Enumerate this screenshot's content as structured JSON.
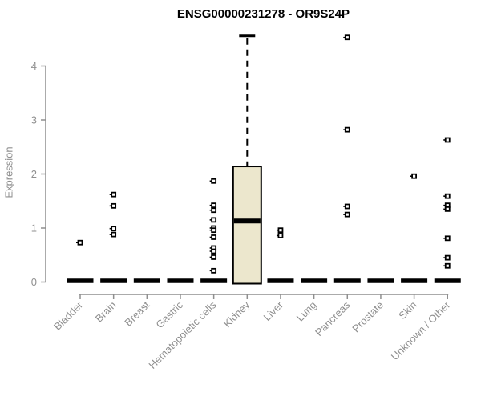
{
  "figure": {
    "title": "ENSG00000231278 - OR9S24P",
    "ylabel": "Expression"
  },
  "chart_data": {
    "type": "boxplot",
    "title": "ENSG00000231278 - OR9S24P",
    "xlabel": "",
    "ylabel": "Expression",
    "ylim": [
      0,
      4.6
    ],
    "yticks": [
      0,
      1,
      2,
      3,
      4
    ],
    "grid": false,
    "legend": null,
    "outlier_marker": "open-square",
    "categories": [
      "Bladder",
      "Brain",
      "Breast",
      "Gastric",
      "Hematopoietic cells",
      "Kidney",
      "Liver",
      "Lung",
      "Pancreas",
      "Prostate",
      "Skin",
      "Unknown / Other"
    ],
    "boxes": [
      {
        "category": "Bladder",
        "q1": 0,
        "median": 0,
        "q3": 0,
        "whisker_low": 0,
        "whisker_high": 0,
        "outliers": [
          0.73
        ]
      },
      {
        "category": "Brain",
        "q1": 0,
        "median": 0,
        "q3": 0,
        "whisker_low": 0,
        "whisker_high": 0,
        "outliers": [
          1.62,
          1.41,
          0.99,
          0.88
        ]
      },
      {
        "category": "Breast",
        "q1": 0,
        "median": 0,
        "q3": 0,
        "whisker_low": 0,
        "whisker_high": 0,
        "outliers": []
      },
      {
        "category": "Gastric",
        "q1": 0,
        "median": 0,
        "q3": 0,
        "whisker_low": 0,
        "whisker_high": 0,
        "outliers": []
      },
      {
        "category": "Hematopoietic cells",
        "q1": 0,
        "median": 0,
        "q3": 0,
        "whisker_low": 0,
        "whisker_high": 0,
        "outliers": [
          1.87,
          1.42,
          1.33,
          1.15,
          1.0,
          0.96,
          0.83,
          0.63,
          0.57,
          0.46,
          0.21
        ]
      },
      {
        "category": "Kidney",
        "q1": 0,
        "median": 1.13,
        "q3": 2.14,
        "whisker_low": 0,
        "whisker_high": 4.56,
        "outliers": []
      },
      {
        "category": "Liver",
        "q1": 0,
        "median": 0,
        "q3": 0,
        "whisker_low": 0,
        "whisker_high": 0,
        "outliers": [
          0.96,
          0.86
        ]
      },
      {
        "category": "Lung",
        "q1": 0,
        "median": 0,
        "q3": 0,
        "whisker_low": 0,
        "whisker_high": 0,
        "outliers": []
      },
      {
        "category": "Pancreas",
        "q1": 0,
        "median": 0,
        "q3": 0,
        "whisker_low": 0,
        "whisker_high": 0,
        "outliers": [
          4.53,
          2.82,
          1.4,
          1.25
        ]
      },
      {
        "category": "Prostate",
        "q1": 0,
        "median": 0,
        "q3": 0,
        "whisker_low": 0,
        "whisker_high": 0,
        "outliers": []
      },
      {
        "category": "Skin",
        "q1": 0,
        "median": 0,
        "q3": 0,
        "whisker_low": 0,
        "whisker_high": 0,
        "outliers": [
          1.96
        ]
      },
      {
        "category": "Unknown / Other",
        "q1": 0,
        "median": 0,
        "q3": 0,
        "whisker_low": 0,
        "whisker_high": 0,
        "outliers": [
          2.63,
          1.59,
          1.42,
          1.35,
          0.81,
          0.45,
          0.3
        ]
      }
    ],
    "colors": {
      "background": "#FFFFFF",
      "box_fill": "#ECE7CD",
      "box_border": "#000000",
      "median": "#000000",
      "whisker": "#000000",
      "outlier": "#000000",
      "axis": "#8F8F8F",
      "tick_label": "#8F8F8F",
      "title": "#000000"
    }
  }
}
